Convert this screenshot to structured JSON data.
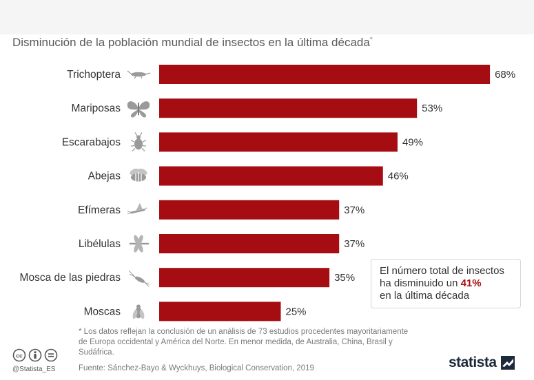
{
  "title": "Disminución de la población mundial de insectos en la última década",
  "title_marker": "*",
  "chart_data": {
    "type": "bar",
    "orientation": "horizontal",
    "categories": [
      "Trichoptera",
      "Mariposas",
      "Escarabajos",
      "Abejas",
      "Efímeras",
      "Libélulas",
      "Mosca de las piedras",
      "Moscas"
    ],
    "values": [
      68,
      53,
      49,
      46,
      37,
      37,
      35,
      25
    ],
    "value_labels": [
      "68%",
      "53%",
      "49%",
      "46%",
      "37%",
      "37%",
      "35%",
      "25%"
    ],
    "unit": "%",
    "xlim": [
      0,
      70
    ],
    "grid": false,
    "bar_color": "#a50d12",
    "icons": [
      "caddisfly-icon",
      "butterfly-icon",
      "beetle-icon",
      "bee-icon",
      "mayfly-icon",
      "dragonfly-icon",
      "stonefly-icon",
      "fly-icon"
    ]
  },
  "callout": {
    "line1": "El número total de insectos",
    "line2_prefix": "ha disminuido un ",
    "line2_value": "41%",
    "line3": "en la última década"
  },
  "footnote": "* Los datos reflejan la conclusión de un análisis de 73 estudios procedentes mayoritariamente de Europa occidental y América del Norte. En menor medida, de Australia, China, Brasil y Sudáfrica.",
  "source": "Fuente: Sánchez-Bayo & Wyckhuys, Biological Conservation, 2019",
  "handle": "@Statista_ES",
  "brand": "statista",
  "colors": {
    "accent": "#a50d12",
    "icon": "#9a9a9a",
    "text": "#2e2e2e",
    "muted": "#7a7a7a"
  }
}
